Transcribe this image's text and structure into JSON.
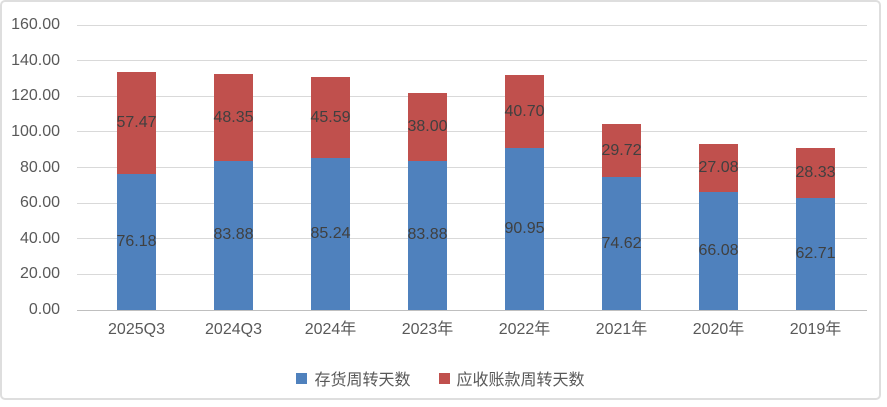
{
  "chart_data": {
    "type": "bar",
    "stacked": true,
    "title": "",
    "categories": [
      "2025Q3",
      "2024Q3",
      "2024年",
      "2023年",
      "2022年",
      "2021年",
      "2020年",
      "2019年"
    ],
    "series": [
      {
        "name": "存货周转天数",
        "color": "#4F81BD",
        "values": [
          76.18,
          83.88,
          85.24,
          83.88,
          90.95,
          74.62,
          66.08,
          62.71
        ]
      },
      {
        "name": "应收账款周转天数",
        "color": "#C0504D",
        "values": [
          57.47,
          48.35,
          45.59,
          38.0,
          40.7,
          29.72,
          27.08,
          28.33
        ]
      }
    ],
    "ylim": [
      0,
      160
    ],
    "ytick_step": 20,
    "yticks": [
      "0.00",
      "20.00",
      "40.00",
      "60.00",
      "80.00",
      "100.00",
      "120.00",
      "140.00",
      "160.00"
    ],
    "grid": true,
    "data_labels": true,
    "legend_position": "bottom"
  },
  "style": {
    "background": "#FFFFFF",
    "card_border_color": "#DEDEDE",
    "gridline_color": "#D9D9D9",
    "axis_line_color": "#BFBFBF",
    "axis_label_color": "#595959",
    "data_label_color": "#404040"
  }
}
